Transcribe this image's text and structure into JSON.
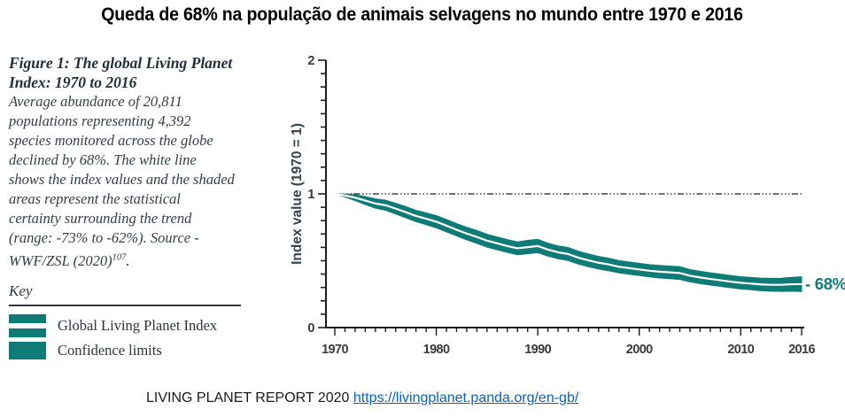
{
  "page": {
    "title": "Queda de 68% na população de animais selvagens no mundo entre 1970 e 2016",
    "footer": {
      "text": "LIVING PLANET REPORT 2020",
      "link_label": "https://livingplanet.panda.org/en-gb/",
      "link_href": "https://livingplanet.panda.org/en-gb/"
    }
  },
  "figure_caption": {
    "heading": "Figure 1: The global Living Planet Index: 1970 to 2016",
    "body": "Average abundance of 20,811 populations representing 4,392 species monitored across the globe declined by 68%. The white line shows the index values and the shaded areas represent the statistical certainty surrounding the trend (range: -73% to -62%).",
    "source_prefix": "Source - WWF/ZSL (2020)",
    "source_superscript": "107",
    "source_suffix": "."
  },
  "key": {
    "title": "Key",
    "items": [
      {
        "swatch": "index-line",
        "label": "Global Living Planet Index"
      },
      {
        "swatch": "confidence-band",
        "label": "Confidence limits"
      }
    ]
  },
  "chart_data": {
    "type": "area",
    "title": "",
    "xlabel": "",
    "ylabel": "Index value (1970 = 1)",
    "xlim": [
      1970,
      2016
    ],
    "ylim": [
      0,
      2
    ],
    "x_tick_labels": [
      1970,
      1980,
      1990,
      2000,
      2010,
      2016
    ],
    "y_tick_labels": [
      0,
      1,
      2
    ],
    "y_minor_tick_step": 0.1,
    "reference_line_y": 1,
    "end_label": "- 68%",
    "legend_position": "left-panel",
    "grid": false,
    "colors": {
      "band": "#0e7b77",
      "line": "#ffffff",
      "axis": "#1e1e1e",
      "tick_text": "#3a3a3a"
    },
    "years": [
      1970,
      1971,
      1972,
      1973,
      1974,
      1975,
      1976,
      1977,
      1978,
      1979,
      1980,
      1981,
      1982,
      1983,
      1984,
      1985,
      1986,
      1987,
      1988,
      1989,
      1990,
      1991,
      1992,
      1993,
      1994,
      1995,
      1996,
      1997,
      1998,
      1999,
      2000,
      2001,
      2002,
      2003,
      2004,
      2005,
      2006,
      2007,
      2008,
      2009,
      2010,
      2011,
      2012,
      2013,
      2014,
      2015,
      2016
    ],
    "series": [
      {
        "name": "Global Living Planet Index",
        "values": [
          1.0,
          0.988,
          0.972,
          0.95,
          0.928,
          0.915,
          0.89,
          0.863,
          0.835,
          0.814,
          0.792,
          0.762,
          0.732,
          0.703,
          0.678,
          0.65,
          0.63,
          0.61,
          0.593,
          0.602,
          0.61,
          0.583,
          0.563,
          0.55,
          0.523,
          0.503,
          0.485,
          0.472,
          0.455,
          0.445,
          0.435,
          0.425,
          0.418,
          0.413,
          0.408,
          0.388,
          0.375,
          0.364,
          0.354,
          0.344,
          0.335,
          0.329,
          0.323,
          0.32,
          0.32,
          0.324,
          0.325
        ]
      },
      {
        "name": "Confidence upper limit",
        "values": [
          1.0,
          0.999,
          0.994,
          0.98,
          0.963,
          0.953,
          0.93,
          0.905,
          0.878,
          0.858,
          0.838,
          0.808,
          0.778,
          0.75,
          0.726,
          0.698,
          0.678,
          0.658,
          0.641,
          0.652,
          0.66,
          0.631,
          0.611,
          0.599,
          0.571,
          0.551,
          0.532,
          0.519,
          0.501,
          0.491,
          0.481,
          0.471,
          0.465,
          0.46,
          0.456,
          0.434,
          0.421,
          0.41,
          0.4,
          0.39,
          0.381,
          0.375,
          0.37,
          0.368,
          0.369,
          0.376,
          0.38
        ]
      },
      {
        "name": "Confidence lower limit",
        "values": [
          1.0,
          0.977,
          0.95,
          0.92,
          0.893,
          0.877,
          0.85,
          0.821,
          0.792,
          0.77,
          0.746,
          0.716,
          0.686,
          0.656,
          0.63,
          0.602,
          0.582,
          0.562,
          0.545,
          0.552,
          0.56,
          0.535,
          0.515,
          0.501,
          0.475,
          0.455,
          0.438,
          0.425,
          0.409,
          0.399,
          0.389,
          0.379,
          0.371,
          0.366,
          0.36,
          0.342,
          0.329,
          0.318,
          0.308,
          0.298,
          0.289,
          0.283,
          0.276,
          0.272,
          0.271,
          0.272,
          0.27
        ]
      }
    ]
  }
}
